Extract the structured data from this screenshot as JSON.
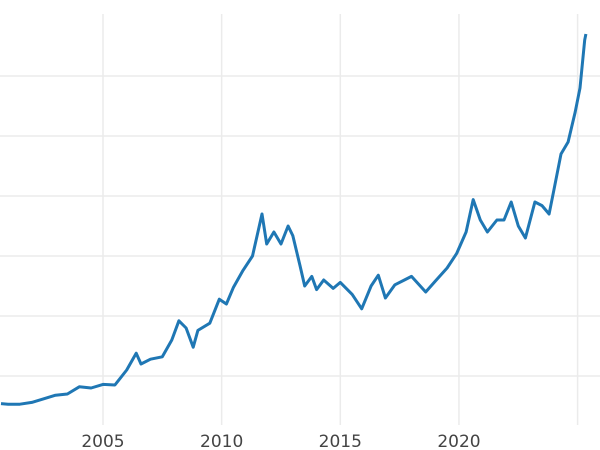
{
  "chart_data": {
    "type": "line",
    "title": "",
    "xlabel": "",
    "ylabel": "",
    "xlim": [
      2000.65,
      2025.4
    ],
    "ylim": [
      0,
      3650
    ],
    "xticks": [
      2005,
      2010,
      2015,
      2020,
      2025
    ],
    "xtick_labels": [
      "2005",
      "2010",
      "2015",
      "2020",
      ""
    ],
    "yticks": [
      500,
      1000,
      1500,
      2000,
      2500,
      3000
    ],
    "ytick_labels_visible": false,
    "grid": true,
    "legend": "none",
    "color": "#1f77b4",
    "series": [
      {
        "x": [
          2000.7,
          2001.0,
          2001.5,
          2002.0,
          2002.5,
          2003.0,
          2003.5,
          2004.0,
          2004.5,
          2005.0,
          2005.5,
          2006.0,
          2006.4,
          2006.6,
          2007.0,
          2007.5,
          2007.9,
          2008.2,
          2008.5,
          2008.8,
          2009.0,
          2009.5,
          2009.9,
          2010.2,
          2010.5,
          2010.9,
          2011.3,
          2011.7,
          2011.9,
          2012.2,
          2012.5,
          2012.8,
          2013.0,
          2013.3,
          2013.5,
          2013.8,
          2014.0,
          2014.3,
          2014.7,
          2015.0,
          2015.5,
          2015.9,
          2016.3,
          2016.6,
          2016.9,
          2017.3,
          2017.7,
          2018.0,
          2018.6,
          2019.0,
          2019.5,
          2019.9,
          2020.3,
          2020.6,
          2020.9,
          2021.2,
          2021.6,
          2021.9,
          2022.2,
          2022.5,
          2022.8,
          2023.2,
          2023.5,
          2023.8,
          2024.0,
          2024.3,
          2024.6,
          2024.9,
          2025.1,
          2025.3,
          2025.35
        ],
        "y": [
          270,
          265,
          265,
          280,
          310,
          340,
          350,
          410,
          400,
          430,
          425,
          550,
          690,
          600,
          640,
          660,
          800,
          960,
          900,
          740,
          880,
          940,
          1140,
          1100,
          1240,
          1380,
          1500,
          1850,
          1600,
          1700,
          1600,
          1750,
          1670,
          1420,
          1250,
          1330,
          1220,
          1300,
          1230,
          1280,
          1180,
          1060,
          1250,
          1340,
          1150,
          1260,
          1300,
          1330,
          1200,
          1290,
          1400,
          1520,
          1700,
          1970,
          1800,
          1700,
          1800,
          1800,
          1950,
          1750,
          1650,
          1950,
          1920,
          1850,
          2050,
          2350,
          2450,
          2700,
          2900,
          3300,
          3350
        ]
      }
    ]
  }
}
